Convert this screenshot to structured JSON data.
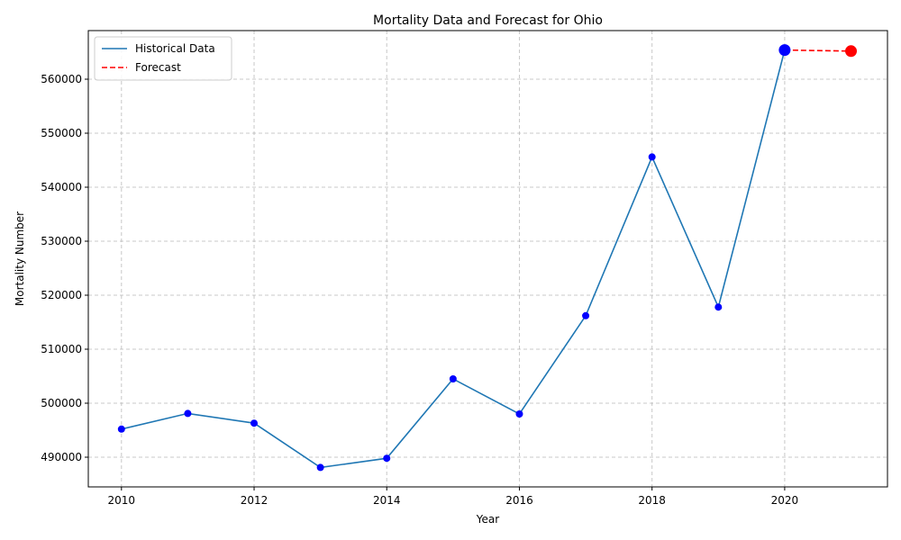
{
  "chart_data": {
    "type": "line",
    "title": "Mortality Data and Forecast for Ohio",
    "xlabel": "Year",
    "ylabel": "Mortality Number",
    "xlim": [
      2009.5,
      2021.55
    ],
    "ylim": [
      484500,
      569000
    ],
    "x_ticks": [
      2010,
      2012,
      2014,
      2016,
      2018,
      2020
    ],
    "y_ticks": [
      490000,
      500000,
      510000,
      520000,
      530000,
      540000,
      550000,
      560000
    ],
    "grid": true,
    "legend_position": "top-left",
    "series": [
      {
        "name": "Historical Data",
        "style": "solid",
        "color": "#1f77b4",
        "marker_color": "#0000ff",
        "x": [
          2010,
          2011,
          2012,
          2013,
          2014,
          2015,
          2016,
          2017,
          2018,
          2019,
          2020
        ],
        "y": [
          495200,
          498100,
          496300,
          488100,
          489800,
          504500,
          498000,
          516200,
          545600,
          517800,
          565400
        ]
      },
      {
        "name": "Forecast",
        "style": "dashed",
        "color": "#ff0000",
        "marker_color": "#ff0000",
        "x": [
          2020,
          2021
        ],
        "y": [
          565400,
          565200
        ]
      }
    ]
  }
}
